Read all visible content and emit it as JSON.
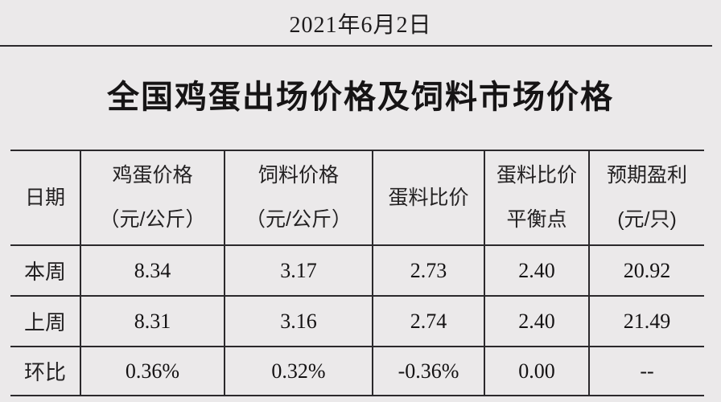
{
  "page": {
    "date": "2021年6月2日",
    "title": "全国鸡蛋出场价格及饲料市场价格"
  },
  "table": {
    "columns": [
      {
        "label": "日期",
        "unit": ""
      },
      {
        "label": "鸡蛋价格",
        "unit": "（元/公斤）"
      },
      {
        "label": "饲料价格",
        "unit": "（元/公斤）"
      },
      {
        "label": "蛋料比价",
        "unit": ""
      },
      {
        "label": "蛋料比价",
        "unit": "平衡点"
      },
      {
        "label": "预期盈利",
        "unit": "(元/只)"
      }
    ],
    "rows": [
      {
        "label": "本周",
        "values": [
          "8.34",
          "3.17",
          "2.73",
          "2.40",
          "20.92"
        ]
      },
      {
        "label": "上周",
        "values": [
          "8.31",
          "3.16",
          "2.74",
          "2.40",
          "21.49"
        ]
      },
      {
        "label": "环比",
        "values": [
          "0.36%",
          "0.32%",
          "-0.36%",
          "0.00",
          "--"
        ]
      }
    ]
  },
  "colors": {
    "background": "#ebe9ea",
    "text": "#1d1b1c",
    "line": "#2b292c"
  }
}
